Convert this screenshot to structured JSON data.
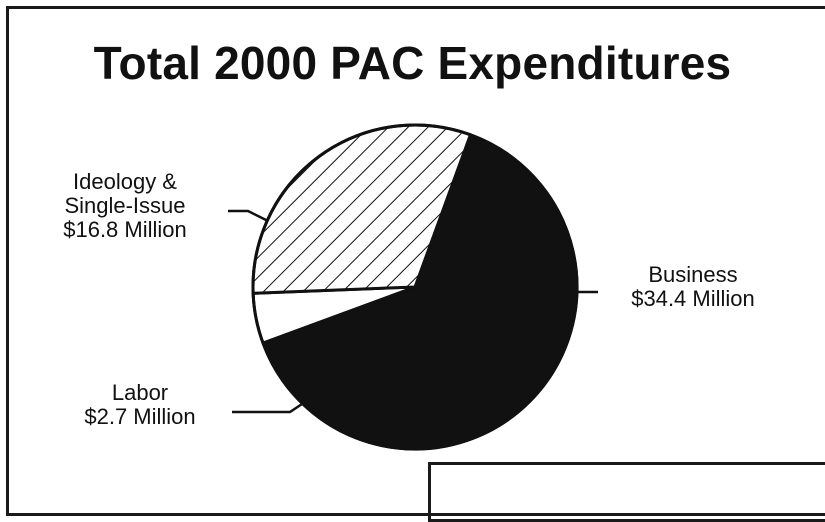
{
  "chart_data": {
    "type": "pie",
    "title": "Total 2000 PAC Expenditures",
    "unit": "$ Million",
    "slices": [
      {
        "name": "Business",
        "value_text": "$34.4 Million",
        "value": 34.4,
        "fill": "solid-black",
        "color": "#111111"
      },
      {
        "name": "Ideology & Single-Issue",
        "name_lines": [
          "Ideology &",
          "Single-Issue"
        ],
        "value_text": "$16.8 Million",
        "value": 16.8,
        "fill": "diagonal-hatch",
        "color": "#ffffff"
      },
      {
        "name": "Labor",
        "value_text": "$2.7 Million",
        "value": 2.7,
        "fill": "white",
        "color": "#ffffff"
      }
    ]
  }
}
